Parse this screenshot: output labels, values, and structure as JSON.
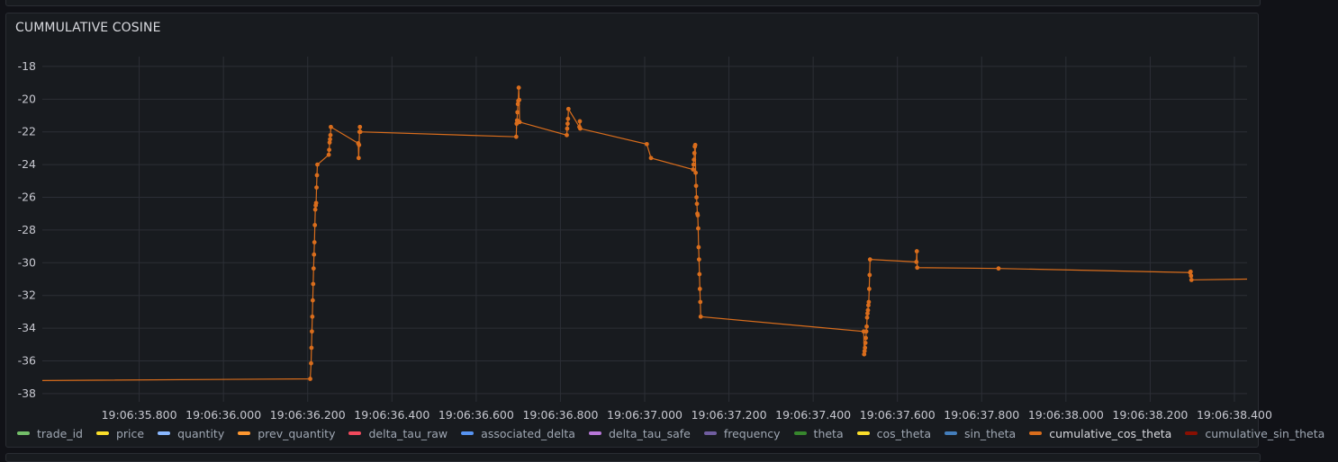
{
  "panel": {
    "title": "CUMMULATIVE COSINE"
  },
  "chart_data": {
    "type": "line",
    "title": "CUMMULATIVE COSINE",
    "xlabel": "",
    "ylabel": "",
    "x_unit": "seconds after 19:06:35",
    "xlim": [
      0.57,
      3.43
    ],
    "ylim": [
      -38.5,
      -17.4
    ],
    "grid": true,
    "legend_position": "bottom",
    "y_ticks": [
      "-18",
      "-20",
      "-22",
      "-24",
      "-26",
      "-28",
      "-30",
      "-32",
      "-34",
      "-36",
      "-38"
    ],
    "y_tick_values": [
      -18,
      -20,
      -22,
      -24,
      -26,
      -28,
      -30,
      -32,
      -34,
      -36,
      -38
    ],
    "x_ticks": [
      "19:06:35.800",
      "19:06:36.000",
      "19:06:36.200",
      "19:06:36.400",
      "19:06:36.600",
      "19:06:36.800",
      "19:06:37.000",
      "19:06:37.200",
      "19:06:37.400",
      "19:06:37.600",
      "19:06:37.800",
      "19:06:38.000",
      "19:06:38.200",
      "19:06:38.400"
    ],
    "x_tick_values": [
      0.8,
      1.0,
      1.2,
      1.4,
      1.6,
      1.8,
      2.0,
      2.2,
      2.4,
      2.6,
      2.8,
      3.0,
      3.2,
      3.4
    ],
    "series": [
      {
        "name": "cumulative_cos_theta",
        "color": "#d96d1c",
        "points": [
          [
            0.57,
            -37.2
          ],
          [
            1.206,
            -37.1
          ],
          [
            1.208,
            -36.15
          ],
          [
            1.209,
            -35.2
          ],
          [
            1.21,
            -34.2
          ],
          [
            1.211,
            -33.3
          ],
          [
            1.212,
            -32.3
          ],
          [
            1.213,
            -31.3
          ],
          [
            1.214,
            -30.35
          ],
          [
            1.215,
            -29.5
          ],
          [
            1.216,
            -28.75
          ],
          [
            1.217,
            -27.7
          ],
          [
            1.218,
            -26.75
          ],
          [
            1.219,
            -26.5
          ],
          [
            1.22,
            -26.35
          ],
          [
            1.221,
            -25.4
          ],
          [
            1.222,
            -24.65
          ],
          [
            1.223,
            -24.0
          ],
          [
            1.25,
            -23.4
          ],
          [
            1.251,
            -23.1
          ],
          [
            1.252,
            -22.65
          ],
          [
            1.253,
            -22.45
          ],
          [
            1.254,
            -22.2
          ],
          [
            1.255,
            -21.7
          ],
          [
            1.32,
            -22.7
          ],
          [
            1.321,
            -23.6
          ],
          [
            1.322,
            -22.8
          ],
          [
            1.323,
            -22.0
          ],
          [
            1.324,
            -21.7
          ],
          [
            1.325,
            -22.0
          ],
          [
            1.695,
            -22.3
          ],
          [
            1.696,
            -21.5
          ],
          [
            1.697,
            -21.3
          ],
          [
            1.698,
            -20.8
          ],
          [
            1.699,
            -20.3
          ],
          [
            1.7,
            -20.1
          ],
          [
            1.701,
            -19.3
          ],
          [
            1.702,
            -20.05
          ],
          [
            1.703,
            -21.4
          ],
          [
            1.815,
            -22.2
          ],
          [
            1.816,
            -21.8
          ],
          [
            1.817,
            -21.5
          ],
          [
            1.818,
            -21.2
          ],
          [
            1.819,
            -20.6
          ],
          [
            1.845,
            -21.7
          ],
          [
            1.846,
            -21.35
          ],
          [
            1.847,
            -21.8
          ],
          [
            2.005,
            -22.75
          ],
          [
            2.015,
            -23.6
          ],
          [
            2.115,
            -24.3
          ],
          [
            2.116,
            -24.0
          ],
          [
            2.117,
            -23.7
          ],
          [
            2.118,
            -23.3
          ],
          [
            2.119,
            -22.9
          ],
          [
            2.12,
            -22.8
          ],
          [
            2.121,
            -24.5
          ],
          [
            2.122,
            -25.3
          ],
          [
            2.123,
            -26.0
          ],
          [
            2.124,
            -26.4
          ],
          [
            2.125,
            -27.0
          ],
          [
            2.126,
            -27.1
          ],
          [
            2.127,
            -27.9
          ],
          [
            2.128,
            -29.05
          ],
          [
            2.129,
            -29.8
          ],
          [
            2.13,
            -30.7
          ],
          [
            2.131,
            -31.6
          ],
          [
            2.132,
            -32.4
          ],
          [
            2.133,
            -33.3
          ],
          [
            2.52,
            -34.2
          ],
          [
            2.521,
            -35.6
          ],
          [
            2.522,
            -35.4
          ],
          [
            2.523,
            -35.2
          ],
          [
            2.524,
            -34.9
          ],
          [
            2.525,
            -34.6
          ],
          [
            2.526,
            -34.2
          ],
          [
            2.527,
            -33.9
          ],
          [
            2.528,
            -33.35
          ],
          [
            2.529,
            -33.1
          ],
          [
            2.53,
            -32.9
          ],
          [
            2.531,
            -32.6
          ],
          [
            2.532,
            -32.4
          ],
          [
            2.533,
            -31.6
          ],
          [
            2.534,
            -30.75
          ],
          [
            2.535,
            -29.8
          ],
          [
            2.645,
            -29.95
          ],
          [
            2.646,
            -29.3
          ],
          [
            2.647,
            -30.3
          ],
          [
            2.84,
            -30.35
          ],
          [
            3.295,
            -30.6
          ],
          [
            3.296,
            -30.55
          ],
          [
            3.297,
            -30.8
          ],
          [
            3.298,
            -31.05
          ],
          [
            3.43,
            -31.0
          ]
        ],
        "dots_from_index": 1
      }
    ]
  },
  "legend": [
    {
      "label": "trade_id",
      "color": "#73bf69"
    },
    {
      "label": "price",
      "color": "#fade2a"
    },
    {
      "label": "quantity",
      "color": "#8ab8ff"
    },
    {
      "label": "prev_quantity",
      "color": "#ff9830"
    },
    {
      "label": "delta_tau_raw",
      "color": "#f2495c"
    },
    {
      "label": "associated_delta",
      "color": "#5794f2"
    },
    {
      "label": "delta_tau_safe",
      "color": "#b877d9"
    },
    {
      "label": "frequency",
      "color": "#705da0"
    },
    {
      "label": "theta",
      "color": "#37872d"
    },
    {
      "label": "cos_theta",
      "color": "#fade2a"
    },
    {
      "label": "sin_theta",
      "color": "#447ebc"
    },
    {
      "label": "cumulative_cos_theta",
      "color": "#d96d1c",
      "active": true
    },
    {
      "label": "cumulative_sin_theta",
      "color": "#890f02"
    }
  ]
}
